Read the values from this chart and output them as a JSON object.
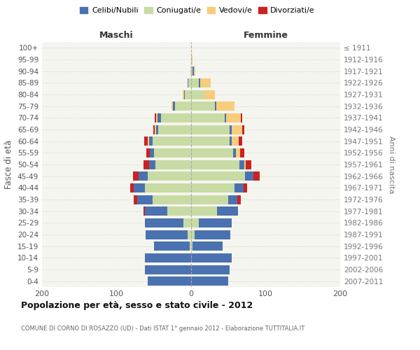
{
  "age_groups": [
    "0-4",
    "5-9",
    "10-14",
    "15-19",
    "20-24",
    "25-29",
    "30-34",
    "35-39",
    "40-44",
    "45-49",
    "50-54",
    "55-59",
    "60-64",
    "65-69",
    "70-74",
    "75-79",
    "80-84",
    "85-89",
    "90-94",
    "95-99",
    "100+"
  ],
  "birth_years": [
    "2007-2011",
    "2002-2006",
    "1997-2001",
    "1992-1996",
    "1987-1991",
    "1982-1986",
    "1977-1981",
    "1972-1976",
    "1967-1971",
    "1962-1966",
    "1957-1961",
    "1952-1956",
    "1947-1951",
    "1942-1946",
    "1937-1941",
    "1932-1936",
    "1927-1931",
    "1922-1926",
    "1917-1921",
    "1912-1916",
    "≤ 1911"
  ],
  "colors": {
    "celibi": "#4b72b0",
    "coniugati": "#c8dba4",
    "vedovi": "#f7cc7a",
    "divorziati": "#cc2222"
  },
  "males": {
    "coniugati": [
      0,
      0,
      0,
      2,
      5,
      10,
      32,
      52,
      62,
      58,
      48,
      50,
      52,
      44,
      40,
      22,
      8,
      4,
      1,
      0,
      0
    ],
    "celibi": [
      58,
      62,
      62,
      48,
      56,
      52,
      30,
      20,
      15,
      12,
      8,
      5,
      4,
      3,
      5,
      2,
      1,
      1,
      0,
      0,
      0
    ],
    "vedovi": [
      0,
      0,
      0,
      0,
      0,
      0,
      0,
      0,
      0,
      0,
      0,
      0,
      2,
      2,
      2,
      2,
      2,
      0,
      0,
      0,
      0
    ],
    "divorziati": [
      0,
      0,
      0,
      0,
      0,
      0,
      2,
      5,
      5,
      8,
      8,
      5,
      5,
      2,
      2,
      0,
      0,
      0,
      0,
      0,
      0
    ]
  },
  "females": {
    "coniugati": [
      0,
      0,
      0,
      2,
      5,
      10,
      35,
      50,
      58,
      72,
      65,
      56,
      52,
      52,
      45,
      32,
      18,
      10,
      2,
      0,
      0
    ],
    "celibi": [
      50,
      52,
      54,
      40,
      48,
      44,
      28,
      12,
      12,
      12,
      6,
      4,
      2,
      2,
      2,
      2,
      0,
      2,
      2,
      0,
      0
    ],
    "vedovi": [
      0,
      0,
      0,
      0,
      0,
      0,
      0,
      0,
      0,
      0,
      2,
      6,
      10,
      15,
      20,
      24,
      14,
      14,
      2,
      2,
      0
    ],
    "divorziati": [
      0,
      0,
      0,
      0,
      0,
      0,
      0,
      5,
      5,
      8,
      8,
      5,
      5,
      2,
      2,
      0,
      0,
      0,
      0,
      0,
      0
    ]
  },
  "xlim": [
    -200,
    200
  ],
  "xticks": [
    -200,
    -100,
    0,
    100,
    200
  ],
  "xticklabels": [
    "200",
    "100",
    "0",
    "100",
    "200"
  ],
  "title": "Popolazione per età, sesso e stato civile - 2012",
  "subtitle": "COMUNE DI CORNO DI ROSAZZO (UD) - Dati ISTAT 1° gennaio 2012 - Elaborazione TUTTITALIA.IT",
  "ylabel_left": "Fasce di età",
  "ylabel_right": "Anni di nascita",
  "label_maschi": "Maschi",
  "label_femmine": "Femmine",
  "legend_labels": [
    "Celibi/Nubili",
    "Coniugati/e",
    "Vedovi/e",
    "Divorziati/e"
  ],
  "bg_color": "#ffffff",
  "plot_bg_color": "#f5f5f0"
}
